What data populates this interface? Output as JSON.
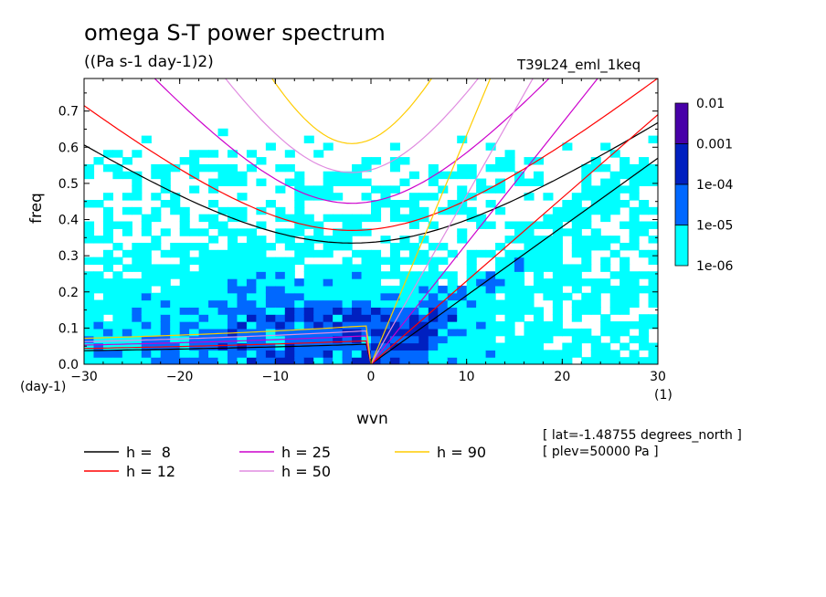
{
  "header": {
    "title": "omega S-T power spectrum",
    "subtitle": "((Pa s-1 day-1)2)",
    "run_id": "T39L24_eml_1keq"
  },
  "meta": {
    "lat": "[ lat=-1.48755 degrees_north ]",
    "plev": "[ plev=50000 Pa ]"
  },
  "colors": {
    "fill_levels": [
      "#00ffff",
      "#0068ff",
      "#0020c0",
      "#4800a8"
    ],
    "h8": "#000000",
    "h12": "#ff0000",
    "h25": "#cc00cc",
    "h50": "#e08ce0",
    "h90": "#ffcc00"
  },
  "chart_data": {
    "type": "heatmap",
    "title": "omega S-T power spectrum",
    "subtitle": "((Pa s-1 day-1)2)",
    "xlabel": "wvn",
    "ylabel": "freq",
    "x_unit": "(1)",
    "y_unit": "(day-1)",
    "xlim": [
      -30,
      30
    ],
    "ylim": [
      0,
      0.79
    ],
    "x_ticks": [
      -30,
      -20,
      -10,
      0,
      10,
      20,
      30
    ],
    "x_tick_labels": [
      "−30",
      "−20",
      "−10",
      "0",
      "10",
      "20",
      "30"
    ],
    "y_ticks": [
      0,
      0.1,
      0.2,
      0.3,
      0.4,
      0.5,
      0.6,
      0.7
    ],
    "y_tick_labels": [
      "0.0",
      "0.1",
      "0.2",
      "0.3",
      "0.4",
      "0.5",
      "0.6",
      "0.7"
    ],
    "colorbar": {
      "labels": [
        "0.01",
        "0.001",
        "1e-04",
        "1e-05",
        "1e-06"
      ]
    },
    "legend": [
      {
        "label": "h =  8",
        "h": 8
      },
      {
        "label": "h = 12",
        "h": 12
      },
      {
        "label": "h = 25",
        "h": 25
      },
      {
        "label": "h = 50",
        "h": 50
      },
      {
        "label": "h = 90",
        "h": 90
      }
    ],
    "dispersion_curves": [
      {
        "h": 8,
        "inertia_gravity_min": [
          -2,
          0.335
        ],
        "kelvin_at_30": 0.57,
        "rossby_min_freq": 0.06
      },
      {
        "h": 12,
        "inertia_gravity_min": [
          -2,
          0.37
        ],
        "kelvin_at_30": 0.69,
        "rossby_min_freq": 0.07
      },
      {
        "h": 25,
        "inertia_gravity_min": [
          -2,
          0.445
        ],
        "kelvin_at_30": 1.0,
        "rossby_min_freq": 0.085
      },
      {
        "h": 50,
        "inertia_gravity_min": [
          -2,
          0.53
        ],
        "kelvin_at_30": 1.4,
        "rossby_min_freq": 0.1
      },
      {
        "h": 90,
        "inertia_gravity_min": [
          -2,
          0.61
        ],
        "kelvin_at_30": 1.9,
        "rossby_min_freq": 0.115
      }
    ],
    "regions": [
      {
        "level": "1e-06",
        "x": [
          -30,
          30
        ],
        "y": [
          0.0,
          0.75
        ],
        "note": "widespread cyan at low freq, fades above 0.55"
      },
      {
        "level": "1e-05",
        "x": [
          -28,
          12
        ],
        "y": [
          0.0,
          0.4
        ],
        "note": "blue concentrated at negative wavenumbers and near 0-10"
      },
      {
        "level": "1e-04",
        "x": [
          -20,
          8
        ],
        "y": [
          0.02,
          0.2
        ],
        "note": "dark blue patches near freq 0.05-0.15"
      }
    ]
  }
}
